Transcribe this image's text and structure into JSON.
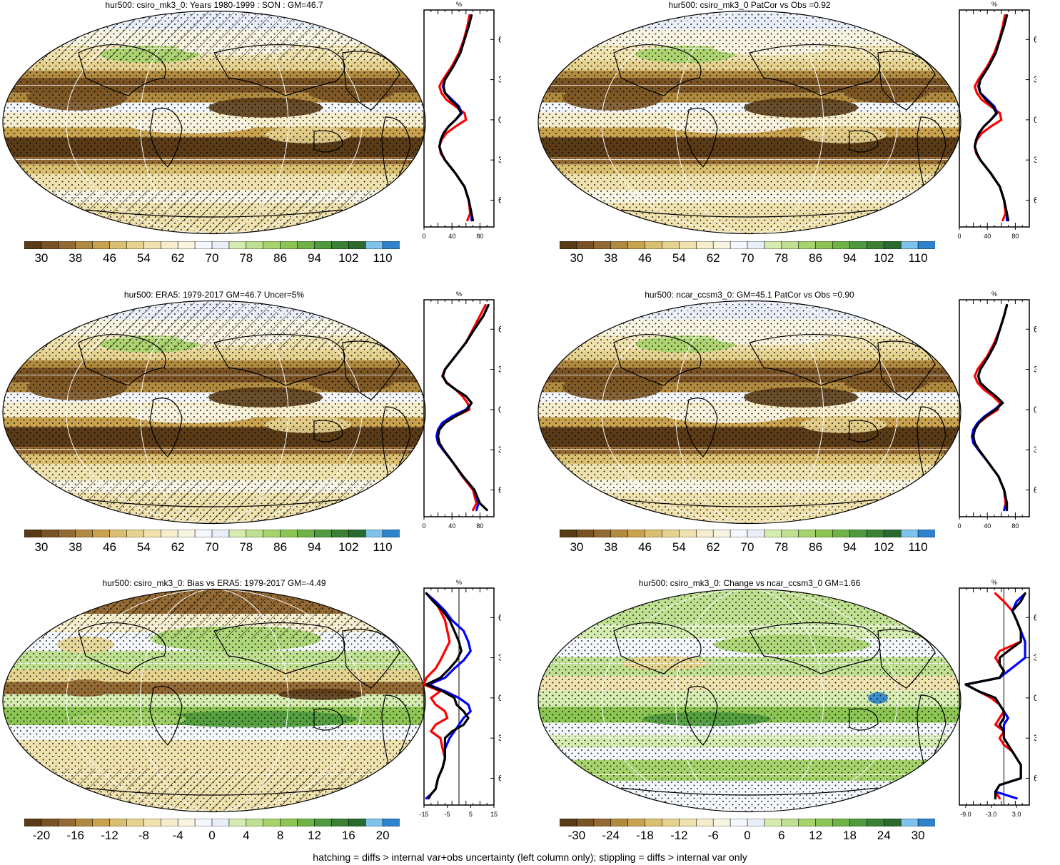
{
  "footer": "hatching = diffs > internal var+obs uncertainty (left column only); stippling = diffs > internal var only",
  "palettes": {
    "abs": [
      "#5a3b17",
      "#7a5324",
      "#946a34",
      "#b08a3e",
      "#c9a24e",
      "#d9bf6f",
      "#e6d28f",
      "#efe2ae",
      "#f5edcb",
      "#f8f4e2",
      "#f4f7fb",
      "#e9eef8",
      "#d5ebb0",
      "#bfe091",
      "#a6d36b",
      "#8cc554",
      "#6fb247",
      "#4f9a3e",
      "#3a8135",
      "#2b6a2e",
      "#7ec3ee",
      "#2e83cc"
    ],
    "diff": [
      "#5a3b17",
      "#7a5324",
      "#946a34",
      "#b08a3e",
      "#c9a24e",
      "#d9bf6f",
      "#e6d28f",
      "#efe2ae",
      "#f5edcb",
      "#f8f4e2",
      "#f4f7fb",
      "#e9eef8",
      "#d5ebb0",
      "#bfe091",
      "#a6d36b",
      "#8cc554",
      "#6fb247",
      "#4f9a3e",
      "#3a8135",
      "#2b6a2e",
      "#7ec3ee",
      "#2e83cc"
    ]
  },
  "colors": {
    "model": "#ff0000",
    "obs": "#0000ff",
    "ref": "#000000"
  },
  "panels": [
    {
      "id": "p1",
      "title": "hur500: csiro_mk3_0: Years 1980-1999 : SON : GM=46.7",
      "kind": "abs",
      "hatch": true,
      "colorbar_labels": [
        "30",
        "38",
        "46",
        "54",
        "62",
        "70",
        "78",
        "86",
        "94",
        "102",
        "110"
      ],
      "profile": {
        "unit": "%",
        "xticks": [
          "0",
          "40",
          "80"
        ],
        "xlim": [
          0,
          100
        ],
        "zero_line": false,
        "lat": [
          78,
          70,
          60,
          50,
          40,
          30,
          25,
          20,
          15,
          10,
          5,
          0,
          -5,
          -10,
          -15,
          -20,
          -25,
          -30,
          -40,
          -50,
          -60,
          -70,
          -75
        ],
        "series": [
          {
            "name": "model",
            "values": [
              65,
              62,
              57,
              50,
              40,
              27,
              22,
              25,
              32,
              45,
              58,
              60,
              45,
              32,
              25,
              22,
              24,
              30,
              45,
              58,
              64,
              66,
              62
            ]
          },
          {
            "name": "obs",
            "values": [
              68,
              64,
              58,
              52,
              42,
              30,
              27,
              30,
              40,
              50,
              54,
              45,
              35,
              28,
              24,
              22,
              25,
              30,
              45,
              58,
              64,
              68,
              68
            ]
          },
          {
            "name": "ref",
            "values": [
              68,
              64,
              58,
              52,
              42,
              30,
              28,
              30,
              38,
              48,
              53,
              45,
              35,
              28,
              24,
              22,
              25,
              30,
              45,
              58,
              64,
              68,
              70
            ]
          }
        ]
      }
    },
    {
      "id": "p2",
      "title": "hur500: csiro_mk3_0 PatCor vs Obs =0.92",
      "kind": "abs",
      "hatch": false,
      "colorbar_labels": [
        "30",
        "38",
        "46",
        "54",
        "62",
        "70",
        "78",
        "86",
        "94",
        "102",
        "110"
      ],
      "profile": {
        "unit": "%",
        "xticks": [
          "0",
          "40",
          "80"
        ],
        "xlim": [
          0,
          100
        ],
        "zero_line": false,
        "lat": [
          78,
          70,
          60,
          50,
          40,
          30,
          25,
          20,
          15,
          10,
          5,
          0,
          -5,
          -10,
          -15,
          -20,
          -25,
          -30,
          -40,
          -50,
          -60,
          -70,
          -75
        ],
        "series": [
          {
            "name": "model",
            "values": [
              65,
              62,
              57,
              50,
              40,
              27,
              22,
              25,
              32,
              45,
              58,
              60,
              45,
              32,
              25,
              22,
              24,
              30,
              45,
              58,
              64,
              66,
              62
            ]
          },
          {
            "name": "obs",
            "values": [
              68,
              64,
              58,
              52,
              42,
              30,
              27,
              30,
              40,
              50,
              54,
              45,
              35,
              28,
              24,
              22,
              25,
              30,
              45,
              58,
              64,
              68,
              68
            ]
          },
          {
            "name": "ref",
            "values": [
              68,
              64,
              58,
              52,
              42,
              30,
              28,
              30,
              38,
              48,
              53,
              45,
              35,
              28,
              24,
              22,
              25,
              30,
              45,
              58,
              64,
              68,
              70
            ]
          }
        ]
      }
    },
    {
      "id": "p3",
      "title": "hur500: ERA5: 1979-2017 GM=46.7 Uncer=5%",
      "kind": "abs",
      "hatch": true,
      "colorbar_labels": [
        "30",
        "38",
        "46",
        "54",
        "62",
        "70",
        "78",
        "86",
        "94",
        "102",
        "110"
      ],
      "profile": {
        "unit": "%",
        "xticks": [
          "0",
          "40",
          "80"
        ],
        "xlim": [
          0,
          100
        ],
        "zero_line": false,
        "lat": [
          78,
          70,
          60,
          50,
          40,
          30,
          25,
          20,
          15,
          10,
          5,
          0,
          -5,
          -10,
          -15,
          -20,
          -25,
          -30,
          -40,
          -50,
          -60,
          -70,
          -75
        ],
        "series": [
          {
            "name": "model",
            "values": [
              88,
              80,
              70,
              60,
              45,
              30,
              26,
              33,
              45,
              55,
              62,
              65,
              45,
              30,
              22,
              20,
              22,
              28,
              42,
              55,
              70,
              75,
              70
            ]
          },
          {
            "name": "obs",
            "values": [
              92,
              85,
              72,
              60,
              45,
              30,
              27,
              32,
              45,
              60,
              68,
              60,
              40,
              26,
              20,
              18,
              20,
              27,
              42,
              56,
              72,
              78,
              75
            ]
          },
          {
            "name": "ref",
            "values": [
              92,
              85,
              72,
              60,
              45,
              30,
              27,
              32,
              45,
              60,
              68,
              62,
              45,
              30,
              22,
              20,
              22,
              28,
              42,
              56,
              72,
              80,
              90
            ]
          }
        ]
      }
    },
    {
      "id": "p4",
      "title": "hur500: ncar_ccsm3_0: GM=45.1 PatCor vs Obs =0.90",
      "kind": "abs",
      "hatch": false,
      "colorbar_labels": [
        "30",
        "38",
        "46",
        "54",
        "62",
        "70",
        "78",
        "86",
        "94",
        "102",
        "110"
      ],
      "profile": {
        "unit": "%",
        "xticks": [
          "0",
          "40",
          "80"
        ],
        "xlim": [
          0,
          100
        ],
        "zero_line": false,
        "lat": [
          78,
          70,
          60,
          50,
          40,
          30,
          25,
          20,
          15,
          10,
          5,
          0,
          -5,
          -10,
          -15,
          -20,
          -25,
          -30,
          -40,
          -50,
          -60,
          -70,
          -75
        ],
        "series": [
          {
            "name": "model",
            "values": [
              68,
              64,
              58,
              50,
              40,
              26,
              22,
              26,
              35,
              48,
              58,
              55,
              40,
              28,
              22,
              20,
              22,
              28,
              42,
              56,
              64,
              66,
              64
            ]
          },
          {
            "name": "obs",
            "values": [
              68,
              64,
              58,
              52,
              42,
              30,
              27,
              30,
              40,
              52,
              62,
              50,
              36,
              26,
              20,
              18,
              20,
              27,
              42,
              56,
              64,
              68,
              64
            ]
          },
          {
            "name": "ref",
            "values": [
              68,
              64,
              58,
              52,
              42,
              30,
              27,
              30,
              40,
              52,
              62,
              52,
              38,
              28,
              22,
              20,
              22,
              28,
              42,
              56,
              64,
              68,
              68
            ]
          }
        ]
      }
    },
    {
      "id": "p5",
      "title": "hur500: csiro_mk3_0: Bias vs ERA5: 1979-2017  GM=-4.49",
      "kind": "diff",
      "hatch": true,
      "colorbar_labels": [
        "-20",
        "-16",
        "-12",
        "-8",
        "-4",
        "0",
        "4",
        "8",
        "12",
        "16",
        "20"
      ],
      "profile": {
        "unit": "%",
        "xticks": [
          "-15",
          "-5",
          "5",
          "15"
        ],
        "xlim": [
          -15,
          15
        ],
        "zero_line": true,
        "lat": [
          78,
          72,
          65,
          58,
          50,
          42,
          35,
          28,
          22,
          15,
          10,
          5,
          0,
          -5,
          -10,
          -15,
          -20,
          -25,
          -30,
          -38,
          -45,
          -52,
          -60,
          -68,
          -72,
          -75
        ],
        "series": [
          {
            "name": "model",
            "values": [
              -14,
              -10,
              -8,
              -6,
              -5,
              -4,
              -6,
              -8,
              -10,
              -14,
              -15,
              -8,
              -12,
              -10,
              -6,
              -5,
              -10,
              -12,
              -8,
              -7,
              -6,
              -7,
              -9,
              -10,
              -12,
              -14
            ]
          },
          {
            "name": "obs",
            "values": [
              -14,
              -10,
              -6,
              -3,
              2,
              4,
              5,
              2,
              -2,
              -6,
              -13,
              -6,
              0,
              4,
              5,
              2,
              0,
              -2,
              -4,
              -6,
              -6,
              -7,
              -9,
              -10,
              -12,
              -14
            ]
          },
          {
            "name": "ref",
            "values": [
              -14,
              -11,
              -7,
              -4,
              -2,
              0,
              1,
              -1,
              -4,
              -8,
              -14,
              -7,
              -2,
              -1,
              2,
              4,
              2,
              -3,
              -6,
              -6,
              -6,
              -7,
              -9,
              -10,
              -12,
              -13
            ]
          }
        ]
      }
    },
    {
      "id": "p6",
      "title": "hur500: csiro_mk3_0: Change vs ncar_ccsm3_0 GM=1.66",
      "kind": "diff",
      "hatch": false,
      "colorbar_labels": [
        "-30",
        "-24",
        "-18",
        "-12",
        "-6",
        "0",
        "6",
        "12",
        "18",
        "24",
        "30"
      ],
      "profile": {
        "unit": "%",
        "xticks": [
          "-9.0",
          "-3.0",
          "3.0"
        ],
        "xlim": [
          -10.5,
          6
        ],
        "zero_line": true,
        "lat": [
          78,
          72,
          65,
          58,
          50,
          42,
          35,
          30,
          25,
          20,
          15,
          10,
          5,
          0,
          -5,
          -10,
          -15,
          -20,
          -25,
          -30,
          -35,
          -40,
          -50,
          -60,
          -65,
          -70,
          -75
        ],
        "series": [
          {
            "name": "model",
            "values": [
              -2,
              0,
              2,
              3,
              4,
              4,
              -1,
              -2,
              -1,
              0,
              -1,
              -9,
              -6,
              -3,
              -1,
              0,
              -1,
              -2,
              0,
              -1,
              0,
              2,
              4,
              4,
              -1,
              -2,
              -1
            ]
          },
          {
            "name": "obs",
            "values": [
              5,
              3,
              2,
              3,
              4,
              5,
              5,
              5,
              3,
              1,
              -1,
              -9,
              -6,
              -2,
              -1,
              0,
              1,
              0,
              0,
              0,
              1,
              2,
              4,
              4,
              -1,
              -2,
              3
            ]
          },
          {
            "name": "ref",
            "values": [
              5,
              4,
              2,
              3,
              4,
              4,
              1,
              -1,
              -1,
              0,
              -1,
              -9,
              -6,
              -2,
              -1,
              0,
              0,
              -1,
              0,
              0,
              1,
              2,
              4,
              4,
              -1,
              -2,
              -2
            ]
          }
        ]
      }
    }
  ]
}
